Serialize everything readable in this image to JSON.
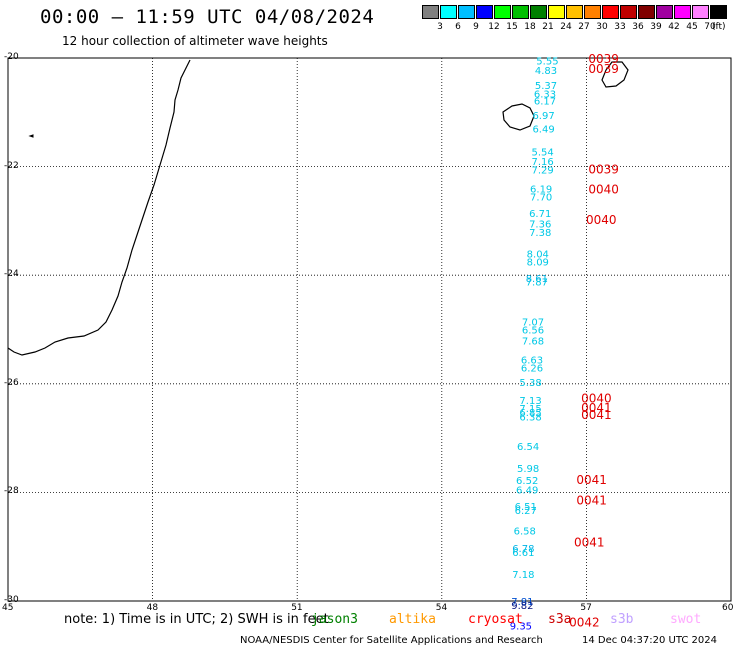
{
  "title": "00:00 – 11:59 UTC 04/08/2024",
  "subtitle": "12 hour collection of altimeter wave heights",
  "colorbar": {
    "unit": "(ft)",
    "colors": [
      "#808080",
      "#00ffff",
      "#00bfff",
      "#0000ff",
      "#00ff00",
      "#00c000",
      "#008000",
      "#ffff00",
      "#ffc000",
      "#ff8000",
      "#ff0000",
      "#c00000",
      "#800000",
      "#a000a0",
      "#ff00ff",
      "#ff80ff",
      "#000000"
    ],
    "labels": [
      "3",
      "6",
      "9",
      "12",
      "15",
      "18",
      "21",
      "24",
      "27",
      "30",
      "33",
      "36",
      "39",
      "42",
      "45",
      "70"
    ]
  },
  "map": {
    "lon_range": [
      45,
      60
    ],
    "lat_range": [
      -30,
      -20
    ],
    "lon_ticks": [
      "45",
      "48",
      "51",
      "54",
      "57",
      "60"
    ],
    "lat_ticks": [
      "-20",
      "-22",
      "-24",
      "-26",
      "-28",
      "-30"
    ]
  },
  "swh_points": [
    {
      "lat": -20.05,
      "lon": 56.5,
      "value": "5.55",
      "color": "#00c8e6"
    },
    {
      "lat": -20.22,
      "lon": 56.47,
      "value": "4.83",
      "color": "#00c8e6"
    },
    {
      "lat": -20.5,
      "lon": 56.47,
      "value": "5.37",
      "color": "#00c8e6"
    },
    {
      "lat": -20.65,
      "lon": 56.45,
      "value": "6.33",
      "color": "#00c8e6"
    },
    {
      "lat": -20.78,
      "lon": 56.45,
      "value": "6.17",
      "color": "#00c8e6"
    },
    {
      "lat": -21.05,
      "lon": 56.42,
      "value": "6.97",
      "color": "#00c8e6"
    },
    {
      "lat": -21.3,
      "lon": 56.42,
      "value": "6.49",
      "color": "#00c8e6"
    },
    {
      "lat": -21.72,
      "lon": 56.4,
      "value": "5.54",
      "color": "#00c8e6"
    },
    {
      "lat": -21.9,
      "lon": 56.4,
      "value": "7.16",
      "color": "#00c8e6"
    },
    {
      "lat": -22.05,
      "lon": 56.4,
      "value": "7.29",
      "color": "#00c8e6"
    },
    {
      "lat": -22.4,
      "lon": 56.37,
      "value": "6.19",
      "color": "#00c8e6"
    },
    {
      "lat": -22.55,
      "lon": 56.37,
      "value": "7.70",
      "color": "#00c8e6"
    },
    {
      "lat": -22.85,
      "lon": 56.35,
      "value": "6.71",
      "color": "#00c8e6"
    },
    {
      "lat": -23.05,
      "lon": 56.35,
      "value": "7.36",
      "color": "#00c8e6"
    },
    {
      "lat": -23.2,
      "lon": 56.35,
      "value": "7.38",
      "color": "#00c8e6"
    },
    {
      "lat": -23.6,
      "lon": 56.3,
      "value": "8.04",
      "color": "#00c8e6"
    },
    {
      "lat": -23.75,
      "lon": 56.3,
      "value": "8.09",
      "color": "#00c8e6"
    },
    {
      "lat": -24.05,
      "lon": 56.28,
      "value": "8.61",
      "color": "#00b4e6"
    },
    {
      "lat": -24.12,
      "lon": 56.28,
      "value": "7.87",
      "color": "#00c8e6"
    },
    {
      "lat": -24.85,
      "lon": 56.2,
      "value": "7.07",
      "color": "#00c8e6"
    },
    {
      "lat": -25.0,
      "lon": 56.2,
      "value": "6.56",
      "color": "#00c8e6"
    },
    {
      "lat": -25.2,
      "lon": 56.2,
      "value": "7.68",
      "color": "#00c8e6"
    },
    {
      "lat": -25.55,
      "lon": 56.18,
      "value": "6.63",
      "color": "#00c8e6"
    },
    {
      "lat": -25.7,
      "lon": 56.18,
      "value": "6.26",
      "color": "#00c8e6"
    },
    {
      "lat": -25.97,
      "lon": 56.15,
      "value": "5.38",
      "color": "#00c8e6"
    },
    {
      "lat": -26.3,
      "lon": 56.15,
      "value": "7.13",
      "color": "#00c8e6"
    },
    {
      "lat": -26.45,
      "lon": 56.15,
      "value": "7.15",
      "color": "#00c8e6"
    },
    {
      "lat": -26.52,
      "lon": 56.15,
      "value": "6.85",
      "color": "#00c8e6"
    },
    {
      "lat": -26.6,
      "lon": 56.15,
      "value": "6.38",
      "color": "#00c8e6"
    },
    {
      "lat": -27.15,
      "lon": 56.1,
      "value": "6.54",
      "color": "#00c8e6"
    },
    {
      "lat": -27.55,
      "lon": 56.1,
      "value": "5.98",
      "color": "#00c8e6"
    },
    {
      "lat": -27.77,
      "lon": 56.08,
      "value": "6.52",
      "color": "#00c8e6"
    },
    {
      "lat": -27.95,
      "lon": 56.08,
      "value": "6.49",
      "color": "#00c8e6"
    },
    {
      "lat": -28.25,
      "lon": 56.05,
      "value": "6.51",
      "color": "#00c8e6"
    },
    {
      "lat": -28.32,
      "lon": 56.05,
      "value": "6.27",
      "color": "#00c8e6"
    },
    {
      "lat": -28.7,
      "lon": 56.03,
      "value": "6.58",
      "color": "#00c8e6"
    },
    {
      "lat": -29.02,
      "lon": 56.0,
      "value": "6.78",
      "color": "#00b4e6"
    },
    {
      "lat": -29.1,
      "lon": 56.0,
      "value": "6.61",
      "color": "#00c8e6"
    },
    {
      "lat": -29.5,
      "lon": 56.0,
      "value": "7.18",
      "color": "#00c8e6"
    },
    {
      "lat": -30.0,
      "lon": 55.98,
      "value": "7.81",
      "color": "#0050d0"
    },
    {
      "lat": -30.07,
      "lon": 55.98,
      "value": "9.82",
      "color": "#001080"
    },
    {
      "lat": -30.45,
      "lon": 55.95,
      "value": "9.35",
      "color": "#0000ff"
    }
  ],
  "time_labels": [
    {
      "lat": -20.02,
      "lon": 57.0,
      "value": "0039"
    },
    {
      "lat": -20.2,
      "lon": 57.0,
      "value": "0039"
    },
    {
      "lat": -22.05,
      "lon": 57.0,
      "value": "0039"
    },
    {
      "lat": -22.42,
      "lon": 57.0,
      "value": "0040"
    },
    {
      "lat": -22.98,
      "lon": 56.95,
      "value": "0040"
    },
    {
      "lat": -26.27,
      "lon": 56.85,
      "value": "0040"
    },
    {
      "lat": -26.45,
      "lon": 56.85,
      "value": "0041"
    },
    {
      "lat": -26.57,
      "lon": 56.85,
      "value": "0041"
    },
    {
      "lat": -27.77,
      "lon": 56.75,
      "value": "0041"
    },
    {
      "lat": -28.15,
      "lon": 56.75,
      "value": "0041"
    },
    {
      "lat": -28.92,
      "lon": 56.7,
      "value": "0041"
    },
    {
      "lat": -30.4,
      "lon": 56.6,
      "value": "0042"
    }
  ],
  "note": "note: 1) Time is in UTC; 2) SWH is in feet",
  "satellites": [
    {
      "name": "jason3",
      "color": "#008000"
    },
    {
      "name": "altika",
      "color": "#ff9900"
    },
    {
      "name": "cryosat",
      "color": "#ff0000"
    },
    {
      "name": "s3a",
      "color": "#cc0000"
    },
    {
      "name": "s3b",
      "color": "#c0a0ff"
    },
    {
      "name": "swot",
      "color": "#ffaaff"
    }
  ],
  "footer_left": "NOAA/NESDIS Center for Satellite Applications and Research",
  "footer_right": "14 Dec 04:37:20 UTC 2024"
}
